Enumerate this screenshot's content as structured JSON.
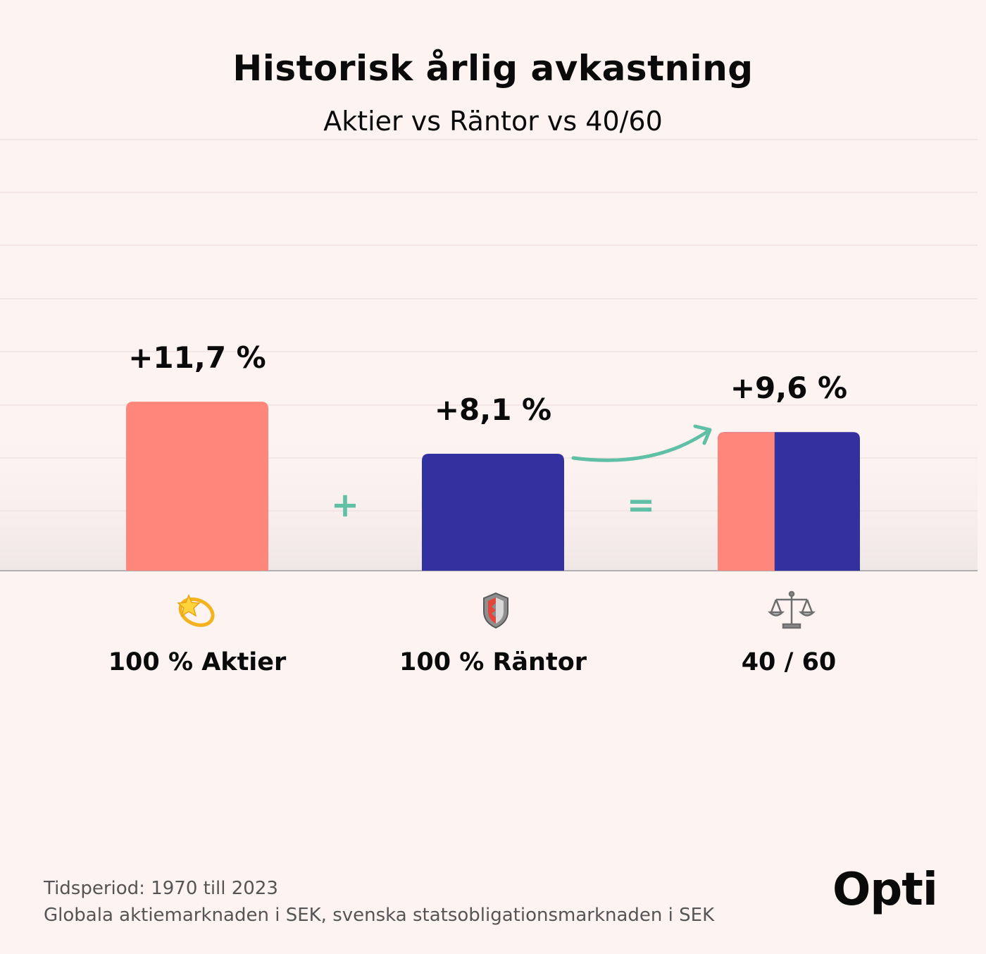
{
  "chart_data": {
    "type": "bar",
    "title": "Historisk årlig avkastning",
    "subtitle": "Aktier vs Räntor vs 40/60",
    "categories": [
      "100 % Aktier",
      "100 % Räntor",
      "40 / 60"
    ],
    "values": [
      11.7,
      8.1,
      9.6
    ],
    "data_labels": [
      "+11,7 %",
      "+8,1 %",
      "+9,6 %"
    ],
    "icons": [
      "dizzy-star-icon",
      "shield-icon",
      "balance-scale-icon"
    ],
    "operators": [
      "+",
      "="
    ],
    "composition_40_60": {
      "stocks_share": 0.4,
      "bonds_share": 0.6
    },
    "ylim": [
      0,
      20
    ],
    "grid": true,
    "xlabel": "",
    "ylabel": ""
  },
  "colors": {
    "background": "#fdf3f1",
    "stocks": "#ff867a",
    "bonds": "#33309f",
    "accent": "#5fc0a5"
  },
  "footer": {
    "line1": "Tidsperiod: 1970 till 2023",
    "line2": "Globala aktiemarknaden i SEK, svenska statsobligationsmarknaden i SEK"
  },
  "brand": {
    "logo": "Opti"
  }
}
